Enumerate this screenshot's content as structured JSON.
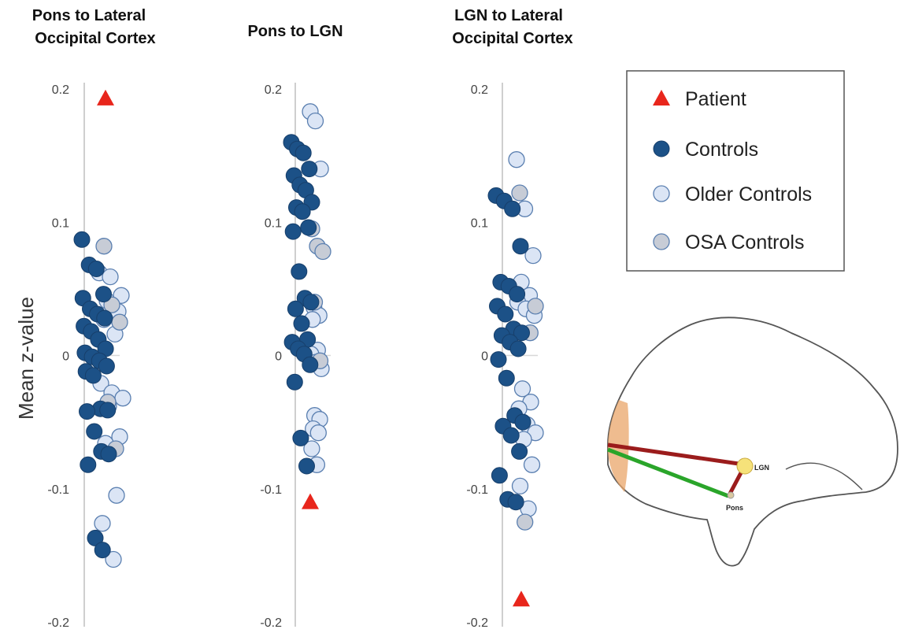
{
  "figure": {
    "ylabel": "Mean z-value",
    "legend": [
      {
        "label": "Patient",
        "marker": "triangle",
        "color": "#e8261c"
      },
      {
        "label": "Controls",
        "marker": "circle",
        "color": "#1c5187"
      },
      {
        "label": "Older Controls",
        "marker": "circle",
        "color": "#dbe5f5"
      },
      {
        "label": "OSA Controls",
        "marker": "circle",
        "color": "#c7ccd6"
      }
    ],
    "diagram": {
      "lgn_label": "LGN",
      "pons_label": "Pons",
      "colors": {
        "lgn_pathway": "#9b1c1c",
        "pons_pathway": "#2aa52a",
        "cortex": "#e9a66a"
      }
    }
  },
  "chart_data": [
    {
      "type": "scatter",
      "title": "Pons to Lateral Occipital Cortex",
      "ylabel": "Mean z-value",
      "ylim": [
        -0.2,
        0.2
      ],
      "yticks": [
        "0.2",
        "0.1",
        "0",
        "-0.1",
        "-0.2"
      ],
      "series": [
        {
          "name": "Patient",
          "values": [
            0.193
          ]
        },
        {
          "name": "Controls",
          "values": [
            0.087,
            0.068,
            0.065,
            0.046,
            0.043,
            0.035,
            0.031,
            0.028,
            0.022,
            0.018,
            0.012,
            0.005,
            0.002,
            -0.001,
            -0.004,
            -0.008,
            -0.012,
            -0.015,
            -0.04,
            -0.041,
            -0.042,
            -0.057,
            -0.072,
            -0.074,
            -0.082,
            -0.137,
            -0.146
          ]
        },
        {
          "name": "Older Controls",
          "values": [
            0.062,
            0.059,
            0.045,
            0.041,
            0.033,
            0.027,
            0.016,
            -0.021,
            -0.028,
            -0.032,
            -0.038,
            -0.061,
            -0.066,
            -0.105,
            -0.126,
            -0.153
          ]
        },
        {
          "name": "OSA Controls",
          "values": [
            0.082,
            0.038,
            0.025,
            -0.035,
            -0.07
          ]
        }
      ]
    },
    {
      "type": "scatter",
      "title": "Pons to LGN",
      "ylabel": "",
      "ylim": [
        -0.2,
        0.2
      ],
      "yticks": [
        "0.2",
        "0.1",
        "0",
        "-0.1",
        "-0.2"
      ],
      "series": [
        {
          "name": "Patient",
          "values": [
            -0.11
          ]
        },
        {
          "name": "Controls",
          "values": [
            0.16,
            0.155,
            0.152,
            0.14,
            0.135,
            0.128,
            0.124,
            0.115,
            0.111,
            0.108,
            0.096,
            0.093,
            0.063,
            0.043,
            0.04,
            0.035,
            0.024,
            0.012,
            0.01,
            0.005,
            0.001,
            -0.007,
            -0.02,
            -0.062,
            -0.083
          ]
        },
        {
          "name": "Older Controls",
          "values": [
            0.183,
            0.176,
            0.14,
            0.036,
            0.03,
            0.027,
            0.004,
            0.001,
            -0.005,
            -0.01,
            -0.045,
            -0.048,
            -0.055,
            -0.058,
            -0.07,
            -0.082
          ]
        },
        {
          "name": "OSA Controls",
          "values": [
            0.095,
            0.082,
            0.078,
            0.04,
            -0.004
          ]
        }
      ]
    },
    {
      "type": "scatter",
      "title": "LGN to Lateral Occipital Cortex",
      "ylabel": "",
      "ylim": [
        -0.2,
        0.2
      ],
      "yticks": [
        "0.2",
        "0.1",
        "0",
        "-0.1",
        "-0.2"
      ],
      "series": [
        {
          "name": "Patient",
          "values": [
            -0.183
          ]
        },
        {
          "name": "Controls",
          "values": [
            0.12,
            0.116,
            0.11,
            0.082,
            0.055,
            0.052,
            0.046,
            0.037,
            0.031,
            0.02,
            0.017,
            0.015,
            0.01,
            0.005,
            -0.003,
            -0.017,
            -0.045,
            -0.05,
            -0.053,
            -0.06,
            -0.072,
            -0.09,
            -0.108,
            -0.11
          ]
        },
        {
          "name": "Older Controls",
          "values": [
            0.147,
            0.11,
            0.075,
            0.055,
            0.045,
            0.04,
            0.035,
            0.03,
            -0.025,
            -0.035,
            -0.04,
            -0.052,
            -0.058,
            -0.063,
            -0.082,
            -0.098,
            -0.115
          ]
        },
        {
          "name": "OSA Controls",
          "values": [
            0.122,
            0.037,
            0.017,
            -0.125
          ]
        }
      ]
    }
  ]
}
